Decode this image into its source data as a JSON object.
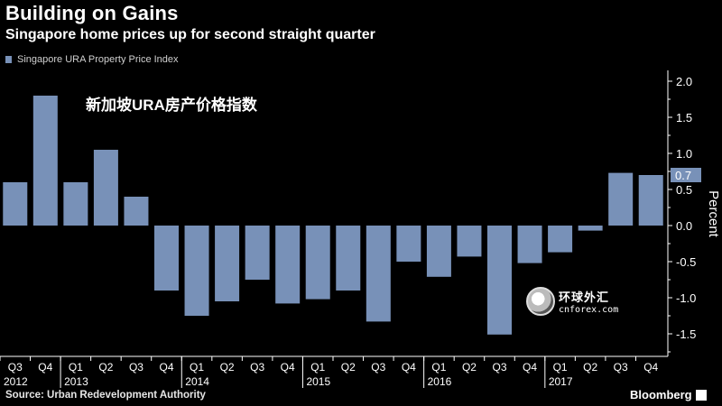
{
  "header": {
    "title": "Building on Gains",
    "subtitle": "Singapore home prices up for second straight quarter"
  },
  "annotation": "新加坡URA房产价格指数",
  "source": "Source: Urban Redevelopment Authority",
  "brand": "Bloomberg",
  "watermark": {
    "cn": "环球外汇",
    "en": "cnforex.com"
  },
  "colors": {
    "bar": "#7891b8",
    "background": "#000000",
    "text": "#ffffff"
  },
  "chart_data": {
    "type": "bar",
    "categories": [
      "Q3",
      "Q4",
      "Q1",
      "Q2",
      "Q3",
      "Q4",
      "Q1",
      "Q2",
      "Q3",
      "Q4",
      "Q1",
      "Q2",
      "Q3",
      "Q4",
      "Q1",
      "Q2",
      "Q3",
      "Q4",
      "Q1",
      "Q2",
      "Q3",
      "Q4"
    ],
    "years": [
      {
        "label": "2012",
        "start": 0
      },
      {
        "label": "2013",
        "start": 2
      },
      {
        "label": "2014",
        "start": 6
      },
      {
        "label": "2015",
        "start": 10
      },
      {
        "label": "2016",
        "start": 14
      },
      {
        "label": "2017",
        "start": 18
      }
    ],
    "series": [
      {
        "name": "Singapore URA Property Price Index",
        "values": [
          0.6,
          1.8,
          0.6,
          1.05,
          0.4,
          -0.9,
          -1.25,
          -1.05,
          -0.75,
          -1.08,
          -1.02,
          -0.9,
          -1.33,
          -0.5,
          -0.71,
          -0.43,
          -1.51,
          -0.52,
          -0.37,
          -0.07,
          0.73,
          0.7
        ]
      }
    ],
    "yticks": [
      2.0,
      1.5,
      1.0,
      0.5,
      0.0,
      -0.5,
      -1.0,
      -1.5
    ],
    "ytick_labels": [
      "2.0",
      "1.5",
      "1.0",
      "0.5",
      "0.0",
      "-0.5",
      "-1.0",
      "-1.5"
    ],
    "ylim": [
      -1.85,
      2.15
    ],
    "ylabel": "Percent",
    "last_value_label": "0.7",
    "legend_position": "top-left",
    "grid": false
  }
}
